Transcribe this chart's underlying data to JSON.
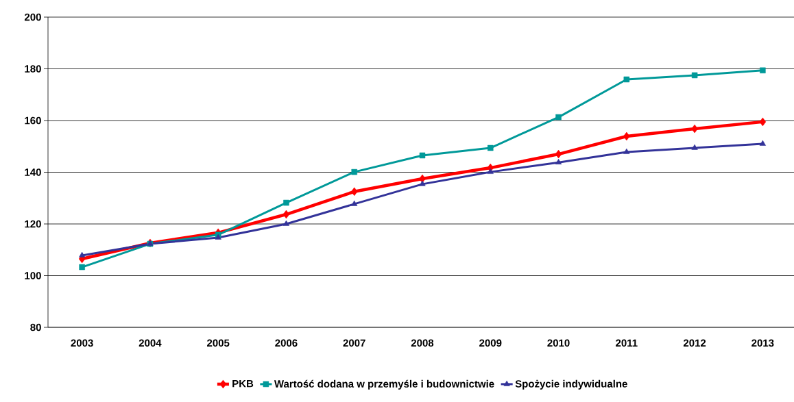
{
  "chart_data": {
    "type": "line",
    "categories": [
      "2003",
      "2004",
      "2005",
      "2006",
      "2007",
      "2008",
      "2009",
      "2010",
      "2011",
      "2012",
      "2013"
    ],
    "series": [
      {
        "name": "PKB",
        "color": "#ff0000",
        "marker": "diamond",
        "values": [
          106.5,
          112.6,
          116.6,
          123.7,
          132.5,
          137.5,
          141.7,
          147,
          153.9,
          156.8,
          159.5
        ]
      },
      {
        "name": "Wartość dodana w przemyśle i budownictwie",
        "color": "#009999",
        "marker": "square",
        "values": [
          103.3,
          112.3,
          115.8,
          128.2,
          140.1,
          146.5,
          149.4,
          161.3,
          175.9,
          177.5,
          179.4
        ]
      },
      {
        "name": "Spożycie indywidualne",
        "color": "#333399",
        "marker": "triangle",
        "values": [
          107.8,
          112.3,
          114.7,
          120,
          127.7,
          135.4,
          140.1,
          143.8,
          147.8,
          149.4,
          151
        ]
      }
    ],
    "ylim": [
      80,
      200
    ],
    "yticks": [
      80,
      100,
      120,
      140,
      160,
      180,
      200
    ],
    "grid": "y",
    "legend": "bottom",
    "line_style": "solid"
  }
}
